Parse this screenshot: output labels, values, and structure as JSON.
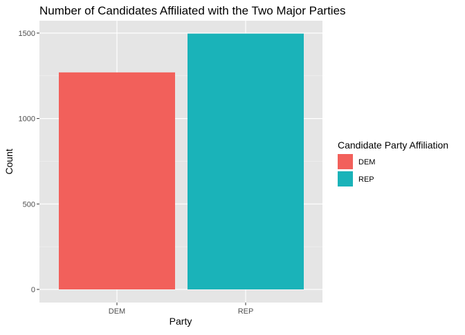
{
  "chart_data": {
    "type": "bar",
    "title": "Number of Candidates Affiliated with the Two Major Parties",
    "xlabel": "Party",
    "ylabel": "Count",
    "categories": [
      "DEM",
      "REP"
    ],
    "values": [
      1270,
      1497
    ],
    "ylim": [
      0,
      1650
    ],
    "yticks": [
      0,
      500,
      1000,
      1500
    ],
    "ytick_labels": [
      "0",
      "500",
      "1000",
      "1500"
    ],
    "grid": true,
    "legend": {
      "title": "Candidate Party Affiliation",
      "position": "right",
      "entries": [
        "DEM",
        "REP"
      ]
    },
    "colors": {
      "DEM": "#F8766D",
      "REP": "#00BFC4",
      "DEM_rendered": "#F2605B",
      "REP_rendered": "#1AB3B9",
      "panel": "#E5E5E5"
    }
  }
}
